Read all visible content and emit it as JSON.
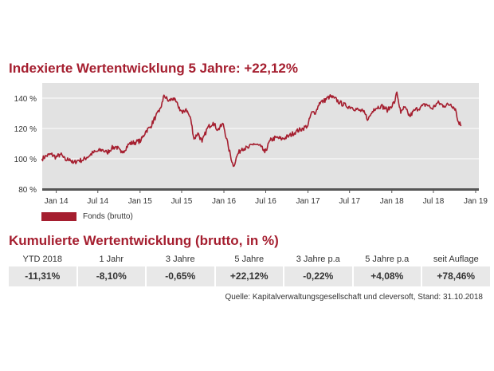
{
  "colors": {
    "accent": "#a51e2f",
    "plot_bg": "#e2e2e2",
    "value_bg": "#e8e8e8"
  },
  "header": {
    "title": "Indexierte Wertentwicklung 5 Jahre: +22,12%"
  },
  "chart_data": {
    "type": "line",
    "title": "Indexierte Wertentwicklung 5 Jahre: +22,12%",
    "xlabel": "",
    "ylabel": "",
    "x_ticks": [
      "Jan 14",
      "Jul 14",
      "Jan 15",
      "Jul 15",
      "Jan 16",
      "Jul 16",
      "Jan 17",
      "Jul 17",
      "Jan 18",
      "Jul 18",
      "Jan 19"
    ],
    "y_ticks": [
      "80 %",
      "100 %",
      "120 %",
      "140 %"
    ],
    "xlim": [
      "2013-11-01",
      "2019-01-15"
    ],
    "ylim": [
      80,
      150
    ],
    "grid": "horizontal",
    "legend_position": "bottom-left",
    "series": [
      {
        "name": "Fonds (brutto)",
        "points": [
          [
            "2013-10-31",
            100
          ],
          [
            "2013-11-20",
            102
          ],
          [
            "2013-12-10",
            103
          ],
          [
            "2013-12-31",
            101
          ],
          [
            "2014-01-20",
            103
          ],
          [
            "2014-02-10",
            99
          ],
          [
            "2014-03-01",
            100
          ],
          [
            "2014-03-15",
            97
          ],
          [
            "2014-04-05",
            99
          ],
          [
            "2014-04-25",
            99
          ],
          [
            "2014-05-15",
            101
          ],
          [
            "2014-06-10",
            104
          ],
          [
            "2014-07-01",
            105
          ],
          [
            "2014-07-20",
            106
          ],
          [
            "2014-08-10",
            104
          ],
          [
            "2014-08-30",
            107
          ],
          [
            "2014-09-20",
            108
          ],
          [
            "2014-10-10",
            104
          ],
          [
            "2014-10-20",
            105
          ],
          [
            "2014-11-15",
            110
          ],
          [
            "2014-12-15",
            111
          ],
          [
            "2015-01-05",
            112
          ],
          [
            "2015-01-25",
            118
          ],
          [
            "2015-02-15",
            121
          ],
          [
            "2015-03-10",
            128
          ],
          [
            "2015-03-25",
            131
          ],
          [
            "2015-04-10",
            138
          ],
          [
            "2015-04-15",
            142
          ],
          [
            "2015-05-05",
            138
          ],
          [
            "2015-05-25",
            140
          ],
          [
            "2015-06-15",
            135
          ],
          [
            "2015-07-05",
            130
          ],
          [
            "2015-07-20",
            133
          ],
          [
            "2015-08-10",
            126
          ],
          [
            "2015-08-24",
            113
          ],
          [
            "2015-09-10",
            117
          ],
          [
            "2015-09-28",
            111
          ],
          [
            "2015-10-20",
            120
          ],
          [
            "2015-11-15",
            124
          ],
          [
            "2015-12-05",
            119
          ],
          [
            "2015-12-29",
            123
          ],
          [
            "2016-01-20",
            108
          ],
          [
            "2016-02-11",
            95
          ],
          [
            "2016-03-01",
            103
          ],
          [
            "2016-03-20",
            107
          ],
          [
            "2016-04-15",
            107
          ],
          [
            "2016-05-10",
            110
          ],
          [
            "2016-06-10",
            108
          ],
          [
            "2016-06-27",
            104
          ],
          [
            "2016-07-20",
            112
          ],
          [
            "2016-08-15",
            114
          ],
          [
            "2016-09-10",
            113
          ],
          [
            "2016-10-10",
            115
          ],
          [
            "2016-11-10",
            118
          ],
          [
            "2016-12-10",
            120
          ],
          [
            "2017-01-01",
            122
          ],
          [
            "2017-01-15",
            130
          ],
          [
            "2017-02-05",
            131
          ],
          [
            "2017-02-20",
            137
          ],
          [
            "2017-03-10",
            138
          ],
          [
            "2017-04-05",
            141
          ],
          [
            "2017-04-25",
            140
          ],
          [
            "2017-05-20",
            137
          ],
          [
            "2017-06-15",
            135
          ],
          [
            "2017-07-10",
            134
          ],
          [
            "2017-08-10",
            132
          ],
          [
            "2017-08-30",
            131
          ],
          [
            "2017-09-20",
            126
          ],
          [
            "2017-10-15",
            133
          ],
          [
            "2017-11-15",
            135
          ],
          [
            "2017-12-15",
            132
          ],
          [
            "2018-01-15",
            138
          ],
          [
            "2018-01-23",
            144
          ],
          [
            "2018-02-09",
            130
          ],
          [
            "2018-02-25",
            134
          ],
          [
            "2018-03-20",
            128
          ],
          [
            "2018-04-10",
            132
          ],
          [
            "2018-05-05",
            134
          ],
          [
            "2018-06-01",
            136
          ],
          [
            "2018-06-25",
            133
          ],
          [
            "2018-07-20",
            137
          ],
          [
            "2018-08-15",
            135
          ],
          [
            "2018-09-15",
            136
          ],
          [
            "2018-10-05",
            133
          ],
          [
            "2018-10-15",
            125
          ],
          [
            "2018-10-31",
            122
          ]
        ]
      }
    ]
  },
  "legend": {
    "label": "Fonds (brutto)"
  },
  "performance": {
    "title": "Kumulierte Wertentwicklung (brutto, in %)",
    "columns": [
      {
        "label": "YTD 2018",
        "value": "-11,31%"
      },
      {
        "label": "1 Jahr",
        "value": "-8,10%"
      },
      {
        "label": "3 Jahre",
        "value": "-0,65%"
      },
      {
        "label": "5 Jahre",
        "value": "+22,12%"
      },
      {
        "label": "3 Jahre p.a",
        "value": "-0,22%"
      },
      {
        "label": "5 Jahre p.a",
        "value": "+4,08%"
      },
      {
        "label": "seit Auflage",
        "value": "+78,46%"
      }
    ]
  },
  "source": "Quelle: Kapitalverwaltungsgesellschaft und cleversoft, Stand: 31.10.2018"
}
